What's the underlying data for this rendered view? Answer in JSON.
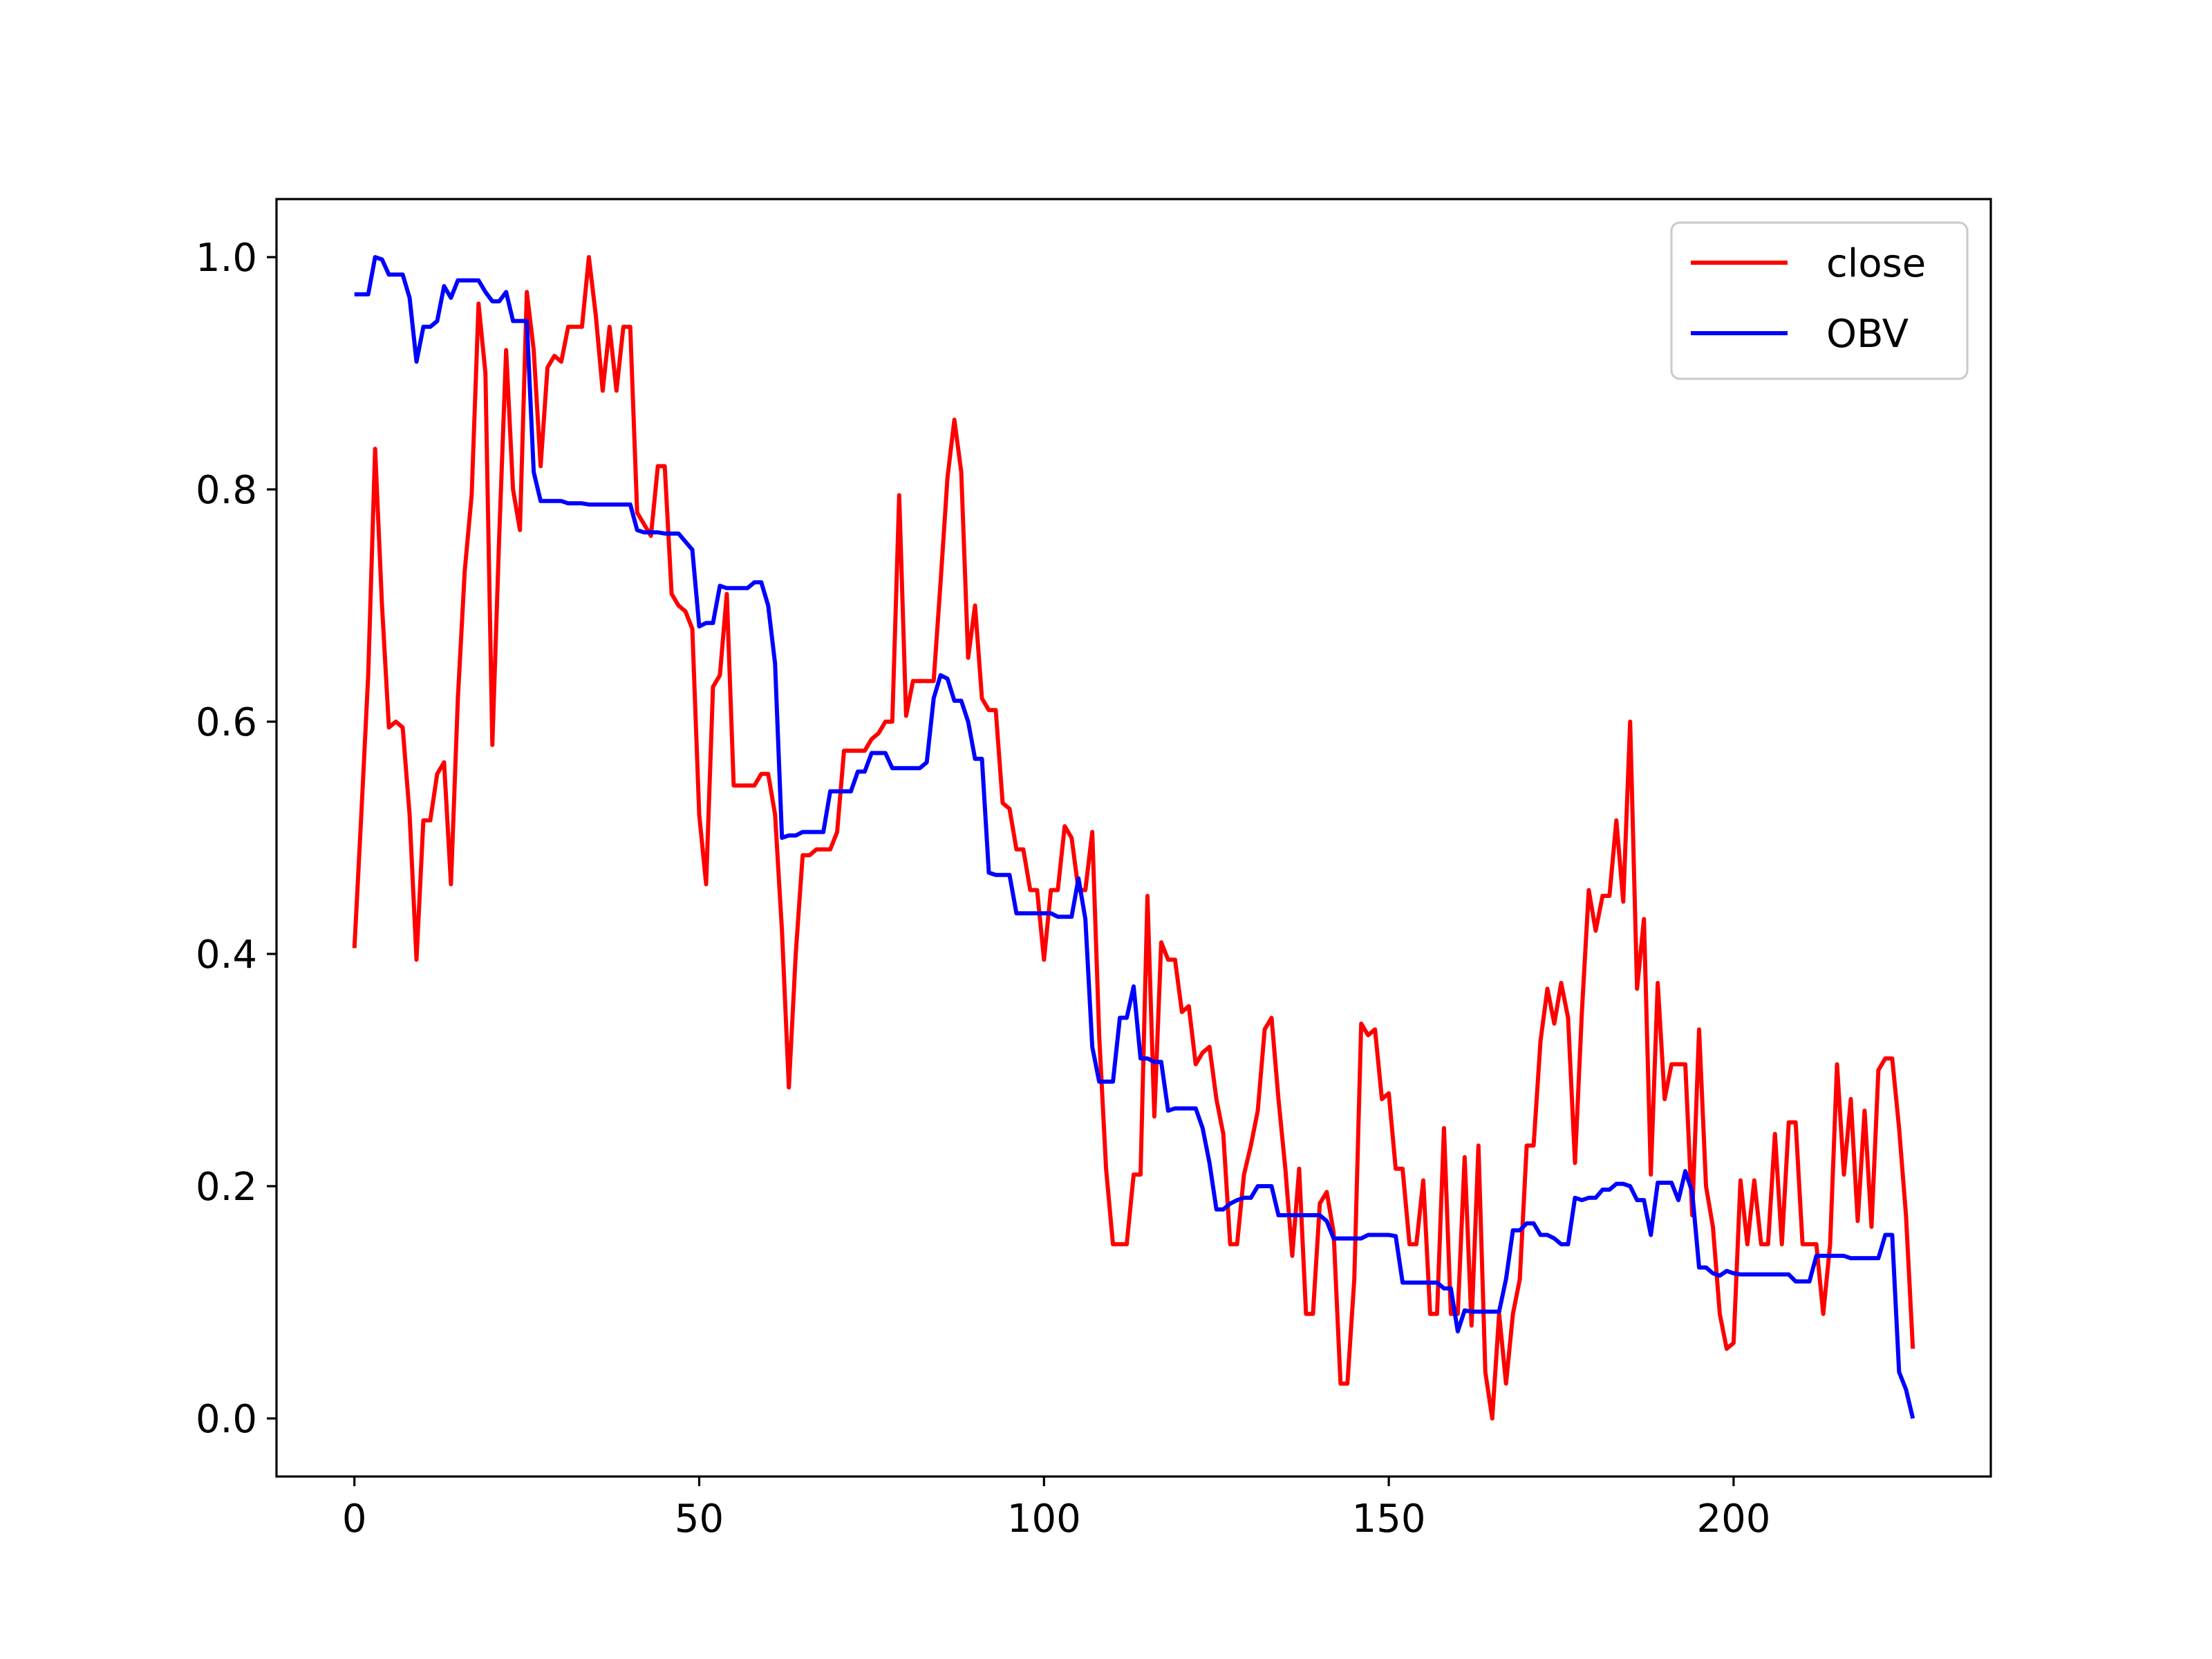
{
  "chart_data": {
    "type": "line",
    "x": [
      0,
      1,
      2,
      3,
      4,
      5,
      6,
      7,
      8,
      9,
      10,
      11,
      12,
      13,
      14,
      15,
      16,
      17,
      18,
      19,
      20,
      21,
      22,
      23,
      24,
      25,
      26,
      27,
      28,
      29,
      30,
      31,
      32,
      33,
      34,
      35,
      36,
      37,
      38,
      39,
      40,
      41,
      42,
      43,
      44,
      45,
      46,
      47,
      48,
      49,
      50,
      51,
      52,
      53,
      54,
      55,
      56,
      57,
      58,
      59,
      60,
      61,
      62,
      63,
      64,
      65,
      66,
      67,
      68,
      69,
      70,
      71,
      72,
      73,
      74,
      75,
      76,
      77,
      78,
      79,
      80,
      81,
      82,
      83,
      84,
      85,
      86,
      87,
      88,
      89,
      90,
      91,
      92,
      93,
      94,
      95,
      96,
      97,
      98,
      99,
      100,
      101,
      102,
      103,
      104,
      105,
      106,
      107,
      108,
      109,
      110,
      111,
      112,
      113,
      114,
      115,
      116,
      117,
      118,
      119,
      120,
      121,
      122,
      123,
      124,
      125,
      126,
      127,
      128,
      129,
      130,
      131,
      132,
      133,
      134,
      135,
      136,
      137,
      138,
      139,
      140,
      141,
      142,
      143,
      144,
      145,
      146,
      147,
      148,
      149,
      150,
      151,
      152,
      153,
      154,
      155,
      156,
      157,
      158,
      159,
      160,
      161,
      162,
      163,
      164,
      165,
      166,
      167,
      168,
      169,
      170,
      171,
      172,
      173,
      174,
      175,
      176,
      177,
      178,
      179,
      180,
      181,
      182,
      183,
      184,
      185,
      186,
      187,
      188,
      189,
      190,
      191,
      192,
      193,
      194,
      195,
      196,
      197,
      198,
      199,
      200,
      201,
      202,
      203,
      204,
      205,
      206,
      207,
      208,
      209,
      210,
      211,
      212,
      213,
      214,
      215,
      216,
      217,
      218,
      219,
      220,
      221,
      222,
      223,
      224,
      225,
      226
    ],
    "series": [
      {
        "name": "close",
        "color": "#ff0000",
        "values": [
          0.405,
          0.52,
          0.64,
          0.835,
          0.7,
          0.595,
          0.6,
          0.595,
          0.52,
          0.395,
          0.515,
          0.515,
          0.555,
          0.565,
          0.46,
          0.62,
          0.73,
          0.795,
          0.96,
          0.9,
          0.58,
          0.76,
          0.92,
          0.8,
          0.765,
          0.97,
          0.92,
          0.82,
          0.905,
          0.915,
          0.91,
          0.94,
          0.94,
          0.94,
          1.0,
          0.95,
          0.885,
          0.94,
          0.885,
          0.94,
          0.94,
          0.78,
          0.77,
          0.76,
          0.82,
          0.82,
          0.71,
          0.7,
          0.695,
          0.68,
          0.52,
          0.46,
          0.63,
          0.64,
          0.71,
          0.545,
          0.545,
          0.545,
          0.545,
          0.555,
          0.555,
          0.52,
          0.42,
          0.285,
          0.4,
          0.485,
          0.485,
          0.49,
          0.49,
          0.49,
          0.505,
          0.575,
          0.575,
          0.575,
          0.575,
          0.585,
          0.59,
          0.6,
          0.6,
          0.795,
          0.605,
          0.635,
          0.635,
          0.635,
          0.635,
          0.72,
          0.81,
          0.86,
          0.815,
          0.655,
          0.7,
          0.62,
          0.61,
          0.61,
          0.53,
          0.525,
          0.49,
          0.49,
          0.455,
          0.455,
          0.395,
          0.455,
          0.455,
          0.51,
          0.5,
          0.455,
          0.455,
          0.505,
          0.33,
          0.215,
          0.15,
          0.15,
          0.15,
          0.21,
          0.21,
          0.45,
          0.26,
          0.41,
          0.395,
          0.395,
          0.35,
          0.355,
          0.305,
          0.315,
          0.32,
          0.275,
          0.245,
          0.15,
          0.15,
          0.21,
          0.235,
          0.265,
          0.335,
          0.345,
          0.275,
          0.215,
          0.14,
          0.215,
          0.09,
          0.09,
          0.185,
          0.195,
          0.16,
          0.03,
          0.03,
          0.12,
          0.34,
          0.33,
          0.335,
          0.275,
          0.28,
          0.215,
          0.215,
          0.15,
          0.15,
          0.205,
          0.09,
          0.09,
          0.25,
          0.09,
          0.09,
          0.225,
          0.08,
          0.235,
          0.04,
          0.0,
          0.09,
          0.03,
          0.09,
          0.12,
          0.235,
          0.235,
          0.325,
          0.37,
          0.34,
          0.375,
          0.345,
          0.22,
          0.35,
          0.455,
          0.42,
          0.45,
          0.45,
          0.515,
          0.445,
          0.6,
          0.37,
          0.43,
          0.21,
          0.375,
          0.275,
          0.305,
          0.305,
          0.305,
          0.175,
          0.335,
          0.2,
          0.165,
          0.09,
          0.06,
          0.065,
          0.205,
          0.15,
          0.205,
          0.15,
          0.15,
          0.245,
          0.15,
          0.255,
          0.255,
          0.15,
          0.15,
          0.15,
          0.09,
          0.15,
          0.305,
          0.21,
          0.275,
          0.17,
          0.265,
          0.165,
          0.3,
          0.31,
          0.31,
          0.25,
          0.175,
          0.06
        ]
      },
      {
        "name": "OBV",
        "color": "#0000ff",
        "values": [
          0.968,
          0.968,
          0.968,
          1.0,
          0.998,
          0.985,
          0.985,
          0.985,
          0.965,
          0.91,
          0.94,
          0.94,
          0.945,
          0.975,
          0.965,
          0.98,
          0.98,
          0.98,
          0.98,
          0.97,
          0.962,
          0.962,
          0.97,
          0.945,
          0.945,
          0.945,
          0.815,
          0.79,
          0.79,
          0.79,
          0.79,
          0.788,
          0.788,
          0.788,
          0.787,
          0.787,
          0.787,
          0.787,
          0.787,
          0.787,
          0.787,
          0.765,
          0.763,
          0.763,
          0.763,
          0.762,
          0.762,
          0.762,
          0.755,
          0.748,
          0.682,
          0.685,
          0.685,
          0.717,
          0.715,
          0.715,
          0.715,
          0.715,
          0.72,
          0.72,
          0.7,
          0.65,
          0.5,
          0.502,
          0.502,
          0.505,
          0.505,
          0.505,
          0.505,
          0.54,
          0.54,
          0.54,
          0.54,
          0.557,
          0.557,
          0.573,
          0.573,
          0.573,
          0.56,
          0.56,
          0.56,
          0.56,
          0.56,
          0.565,
          0.62,
          0.64,
          0.637,
          0.618,
          0.618,
          0.6,
          0.568,
          0.568,
          0.47,
          0.468,
          0.468,
          0.468,
          0.435,
          0.435,
          0.435,
          0.435,
          0.435,
          0.435,
          0.432,
          0.432,
          0.432,
          0.465,
          0.43,
          0.32,
          0.29,
          0.29,
          0.29,
          0.345,
          0.345,
          0.372,
          0.31,
          0.31,
          0.307,
          0.307,
          0.265,
          0.267,
          0.267,
          0.267,
          0.267,
          0.25,
          0.22,
          0.18,
          0.18,
          0.185,
          0.188,
          0.19,
          0.19,
          0.2,
          0.2,
          0.2,
          0.175,
          0.175,
          0.175,
          0.175,
          0.175,
          0.175,
          0.175,
          0.17,
          0.155,
          0.155,
          0.155,
          0.155,
          0.155,
          0.158,
          0.158,
          0.158,
          0.158,
          0.157,
          0.117,
          0.117,
          0.117,
          0.117,
          0.117,
          0.117,
          0.112,
          0.112,
          0.075,
          0.093,
          0.092,
          0.092,
          0.092,
          0.092,
          0.092,
          0.12,
          0.162,
          0.162,
          0.168,
          0.168,
          0.158,
          0.158,
          0.155,
          0.15,
          0.15,
          0.19,
          0.188,
          0.19,
          0.19,
          0.197,
          0.197,
          0.202,
          0.202,
          0.2,
          0.188,
          0.188,
          0.158,
          0.203,
          0.203,
          0.203,
          0.188,
          0.213,
          0.195,
          0.13,
          0.13,
          0.125,
          0.123,
          0.127,
          0.125,
          0.124,
          0.124,
          0.124,
          0.124,
          0.124,
          0.124,
          0.124,
          0.124,
          0.118,
          0.118,
          0.118,
          0.14,
          0.14,
          0.14,
          0.14,
          0.14,
          0.138,
          0.138,
          0.138,
          0.138,
          0.138,
          0.158,
          0.158,
          0.04,
          0.025,
          0.0
        ]
      }
    ],
    "xlim": [
      -11.3,
      237.3
    ],
    "xticks": [
      0,
      50,
      100,
      150,
      200
    ],
    "ylim": [
      -0.05,
      1.05
    ],
    "yticks": [
      {
        "value": 0,
        "label": "0.0"
      },
      0.2,
      0.4,
      0.6,
      0.8,
      {
        "value": 1,
        "label": "1.0"
      }
    ],
    "legend": "upper right"
  }
}
